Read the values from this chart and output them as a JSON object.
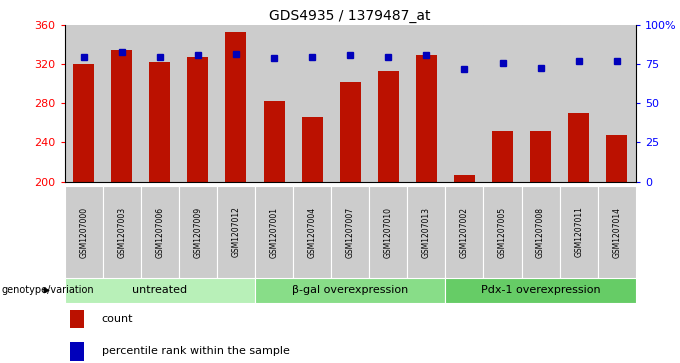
{
  "title": "GDS4935 / 1379487_at",
  "samples": [
    "GSM1207000",
    "GSM1207003",
    "GSM1207006",
    "GSM1207009",
    "GSM1207012",
    "GSM1207001",
    "GSM1207004",
    "GSM1207007",
    "GSM1207010",
    "GSM1207013",
    "GSM1207002",
    "GSM1207005",
    "GSM1207008",
    "GSM1207011",
    "GSM1207014"
  ],
  "counts": [
    320,
    335,
    323,
    328,
    353,
    283,
    266,
    302,
    313,
    330,
    207,
    252,
    252,
    270,
    248
  ],
  "percentiles": [
    80,
    83,
    80,
    81,
    82,
    79,
    80,
    81,
    80,
    81,
    72,
    76,
    73,
    77,
    77
  ],
  "groups": [
    {
      "label": "untreated",
      "start": 0,
      "end": 5,
      "color": "#b8f0b8"
    },
    {
      "label": "β-gal overexpression",
      "start": 5,
      "end": 10,
      "color": "#88dd88"
    },
    {
      "label": "Pdx-1 overexpression",
      "start": 10,
      "end": 15,
      "color": "#66cc66"
    }
  ],
  "ylim_left": [
    200,
    360
  ],
  "ylim_right": [
    0,
    100
  ],
  "yticks_left": [
    200,
    240,
    280,
    320,
    360
  ],
  "yticks_right": [
    0,
    25,
    50,
    75,
    100
  ],
  "ytick_labels_right": [
    "0",
    "25",
    "50",
    "75",
    "100%"
  ],
  "bar_color": "#bb1100",
  "dot_color": "#0000bb",
  "bar_width": 0.55,
  "sample_bg_color": "#cccccc",
  "legend_label_count": "count",
  "legend_label_pct": "percentile rank within the sample",
  "genotype_label": "genotype/variation"
}
